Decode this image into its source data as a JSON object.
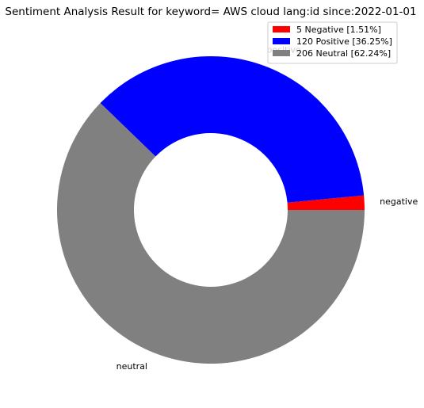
{
  "chart_data": {
    "type": "pie",
    "style": "donut",
    "title": "Sentiment Analysis Result for keyword= AWS cloud lang:id since:2022-01-01",
    "categories": [
      "negative",
      "positive",
      "neutral"
    ],
    "values": [
      5,
      120,
      206
    ],
    "colors": [
      "#ff0000",
      "#0000ff",
      "#808080"
    ],
    "legend": {
      "placement": "top-right",
      "entries": [
        "5 Negative [1.51%]",
        "120 Positive [36.25%]",
        "206 Neutral [62.24%]"
      ]
    },
    "grid": false
  }
}
